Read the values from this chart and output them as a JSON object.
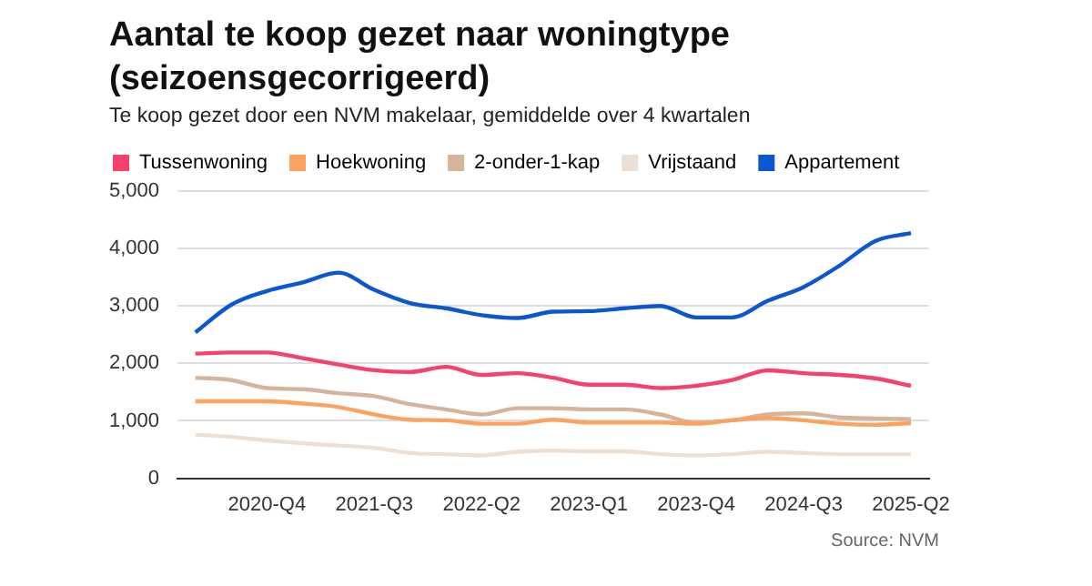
{
  "chart_data": {
    "type": "line",
    "title": "Aantal te koop gezet naar woningtype (seizoensgecorrigeerd)",
    "subtitle": "Te koop gezet door een NVM makelaar, gemiddelde over 4 kwartalen",
    "categories": [
      null,
      null,
      "2020-Q4",
      null,
      null,
      "2021-Q3",
      null,
      null,
      "2022-Q2",
      null,
      null,
      "2023-Q1",
      null,
      null,
      "2023-Q4",
      null,
      null,
      "2024-Q3",
      null,
      null,
      "2025-Q2"
    ],
    "series": [
      {
        "name": "Tussenwoning",
        "color": "#f6416c",
        "values": [
          2170,
          2190,
          2190,
          2090,
          1980,
          1880,
          1850,
          1940,
          1800,
          1830,
          1750,
          1630,
          1630,
          1570,
          1610,
          1710,
          1880,
          1830,
          1800,
          1740,
          1610
        ]
      },
      {
        "name": "Hoekwoning",
        "color": "#fda25e",
        "values": [
          1340,
          1340,
          1340,
          1300,
          1240,
          1110,
          1020,
          1010,
          950,
          950,
          1020,
          970,
          970,
          970,
          950,
          1010,
          1050,
          1010,
          950,
          930,
          960
        ]
      },
      {
        "name": "2-onder-1-kap",
        "color": "#d6b39b",
        "values": [
          1750,
          1710,
          1570,
          1550,
          1480,
          1430,
          1290,
          1200,
          1110,
          1220,
          1220,
          1200,
          1200,
          1110,
          970,
          1010,
          1110,
          1130,
          1060,
          1040,
          1030
        ]
      },
      {
        "name": "Vrijstaand",
        "color": "#eddfd3",
        "values": [
          760,
          720,
          660,
          610,
          570,
          530,
          440,
          420,
          400,
          460,
          480,
          470,
          470,
          420,
          400,
          420,
          460,
          440,
          420,
          420,
          420
        ]
      },
      {
        "name": "Appartement",
        "color": "#0b57d0",
        "values": [
          2540,
          3020,
          3260,
          3410,
          3580,
          3280,
          3050,
          2960,
          2840,
          2790,
          2900,
          2910,
          2960,
          3000,
          2800,
          2800,
          3090,
          3330,
          3700,
          4130,
          4270
        ]
      }
    ],
    "ylim": [
      0,
      5000
    ],
    "yticks": [
      {
        "value": 0,
        "label": "0"
      },
      {
        "value": 1000,
        "label": "1,000"
      },
      {
        "value": 2000,
        "label": "2,000"
      },
      {
        "value": 3000,
        "label": "3,000"
      },
      {
        "value": 4000,
        "label": "4,000"
      },
      {
        "value": 5000,
        "label": "5,000"
      }
    ],
    "grid": "y",
    "legend": "top",
    "marker": "none",
    "line_style": "solid",
    "annotations": [
      "Source: NVM"
    ]
  }
}
